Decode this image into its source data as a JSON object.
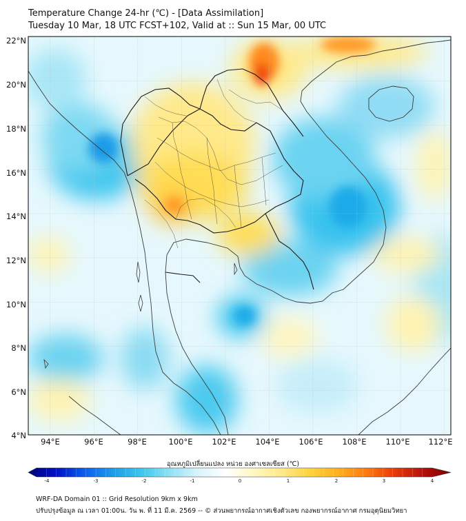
{
  "header": {
    "title_line1": "Temperature Change 24-hr (℃) - [Data Assimilation]",
    "title_line2": "Tuesday 10 Mar, 18 UTC FCST+102, Valid at :: Sun 15 Mar, 00 UTC"
  },
  "map": {
    "lat_labels": [
      "22°N",
      "20°N",
      "18°N",
      "16°N",
      "14°N",
      "12°N",
      "10°N",
      "8°N",
      "6°N",
      "4°N"
    ],
    "lon_labels": [
      "94°E",
      "96°E",
      "98°E",
      "100°E",
      "102°E",
      "104°E",
      "106°E",
      "108°E",
      "110°E",
      "112°E"
    ],
    "lat_range": [
      4,
      22
    ],
    "lon_range": [
      93,
      112.3
    ],
    "ocean_color": "#ffffff",
    "warm_color": "#ffd23a",
    "cool_color": "#37c3ee"
  },
  "colorbar": {
    "label": "อุณหภูมิเปลี่ยนแปลง หน่วย องศาเซลเซียส (℃)",
    "ticks": [
      "-4",
      "-3",
      "-2",
      "-1",
      "0",
      "1",
      "2",
      "3",
      "4"
    ],
    "min": -4,
    "max": 4,
    "colors": [
      "#00007a",
      "#0010c8",
      "#0a5ff0",
      "#1e9be8",
      "#3cc6ee",
      "#8fe0f4",
      "#d6f4fb",
      "#ffffff",
      "#fff8c0",
      "#ffe98a",
      "#ffd23a",
      "#ffb020",
      "#ff7a10",
      "#e83a0a",
      "#b8100a",
      "#7a0000"
    ]
  },
  "footer": {
    "line1": "WRF-DA Domain 01 :: Grid Resolution 9km x 9km",
    "line2": "ปรับปรุงข้อมูล ณ เวลา 01:00น. วัน พ. ที่ 11 มี.ค. 2569 -- © ส่วนพยากรณ์อากาศเชิงตัวเลข กองพยากรณ์อากาศ กรมอุตุนิยมวิทยา"
  }
}
